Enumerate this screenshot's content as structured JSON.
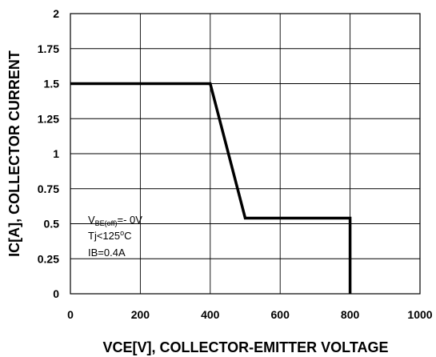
{
  "chart_data": {
    "type": "line",
    "title": "",
    "xlabel": "VCE[V], COLLECTOR-EMITTER VOLTAGE",
    "ylabel": "IC[A], COLLECTOR CURRENT",
    "xlim": [
      0,
      1000
    ],
    "ylim": [
      0,
      2
    ],
    "x_ticks": [
      "0",
      "200",
      "400",
      "600",
      "800",
      "1000"
    ],
    "y_ticks": [
      "0",
      "0.25",
      "0.5",
      "0.75",
      "1",
      "1.25",
      "1.5",
      "1.75",
      "2"
    ],
    "grid": true,
    "series": [
      {
        "x": [
          0,
          400,
          500,
          800,
          800
        ],
        "y": [
          1.5,
          1.5,
          0.54,
          0.54,
          0
        ]
      }
    ],
    "annotation": {
      "vbe_main": "V",
      "vbe_sub": "BE(off)",
      "vbe_value": "=- 0V",
      "tj_main": "Tj<125",
      "tj_sup": "o",
      "tj_unit": "C",
      "ib": "IB=0.4A"
    }
  }
}
